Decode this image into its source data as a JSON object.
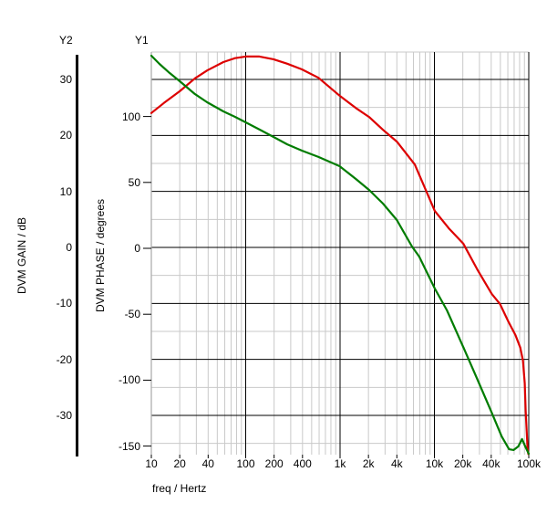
{
  "labels": {
    "y2_axis_name": "Y2",
    "y1_axis_name": "Y1",
    "gain_axis_title": "DVM GAIN / dB",
    "phase_axis_title": "DVM PHASE / degrees",
    "x_axis_title": "freq / Hertz"
  },
  "colors": {
    "gain_curve": "#dd0000",
    "phase_curve": "#007c00",
    "grid_major": "#000000",
    "grid_minor": "#c9c9c9",
    "y1_axis_line": "#a8a8a8",
    "y2_axis_line": "#000000",
    "text": "#000000",
    "background": "#ffffff"
  },
  "chart_data": {
    "type": "line",
    "title": "",
    "xlabel": "freq / Hertz",
    "x_scale": "log",
    "x_range": [
      10,
      100000
    ],
    "grid": true,
    "legend": "none",
    "x_tick_labels": [
      {
        "f": 10,
        "label": "10"
      },
      {
        "f": 20,
        "label": "20"
      },
      {
        "f": 40,
        "label": "40"
      },
      {
        "f": 100,
        "label": "100"
      },
      {
        "f": 200,
        "label": "200"
      },
      {
        "f": 400,
        "label": "400"
      },
      {
        "f": 1000,
        "label": "1k"
      },
      {
        "f": 2000,
        "label": "2k"
      },
      {
        "f": 4000,
        "label": "4k"
      },
      {
        "f": 10000,
        "label": "10k"
      },
      {
        "f": 20000,
        "label": "20k"
      },
      {
        "f": 40000,
        "label": "40k"
      },
      {
        "f": 100000,
        "label": "100k"
      }
    ],
    "y2_axis": {
      "name": "Y2",
      "label": "DVM GAIN / dB",
      "ticks": [
        30,
        20,
        10,
        0,
        -10,
        -20,
        -30
      ],
      "minor_step": 5,
      "range": [
        -37.5,
        35
      ]
    },
    "y1_axis": {
      "name": "Y1",
      "label": "DVM PHASE / degrees",
      "ticks": [
        100,
        50,
        0,
        -50,
        -100,
        -150
      ],
      "range": [
        -156.5,
        149
      ]
    },
    "series": [
      {
        "name": "DVM GAIN / dB",
        "axis": "Y2",
        "color": "#dd0000",
        "x": [
          10,
          13.6,
          20,
          29,
          39,
          58,
          77,
          100,
          140,
          197,
          276,
          395,
          590,
          990,
          1470,
          2030,
          2850,
          4000,
          6200,
          10100,
          14200,
          20200,
          28400,
          40500,
          49500,
          60600,
          72500,
          81300,
          86800,
          90700,
          92700,
          94800,
          96900,
          99000
        ],
        "y": [
          24.0,
          25.8,
          27.9,
          30.2,
          31.6,
          33.1,
          33.8,
          34.1,
          34.1,
          33.6,
          32.8,
          31.8,
          30.3,
          27.1,
          24.9,
          23.3,
          21.0,
          18.9,
          14.8,
          6.5,
          3.4,
          0.7,
          -3.9,
          -8.3,
          -10.1,
          -13.2,
          -15.7,
          -17.9,
          -20.2,
          -24.3,
          -29.2,
          -32.4,
          -35.7,
          -36.9
        ]
      },
      {
        "name": "DVM PHASE / degrees",
        "axis": "Y1",
        "color": "#007c00",
        "x": [
          10,
          12.2,
          15.6,
          20,
          29,
          39,
          58,
          77,
          100,
          141,
          197,
          276,
          395,
          590,
          990,
          1470,
          2030,
          2850,
          4000,
          5790,
          6890,
          10100,
          13600,
          20200,
          28400,
          40500,
          51700,
          61900,
          69100,
          77400,
          84800,
          92700,
          100000
        ],
        "y": [
          146.1,
          139.9,
          133.0,
          126.7,
          117.0,
          110.8,
          103.9,
          99.7,
          95.6,
          90.0,
          84.5,
          78.9,
          74.1,
          69.3,
          62.3,
          52.6,
          44.3,
          33.9,
          21.5,
          1.4,
          -6.2,
          -30.5,
          -47.1,
          -74.8,
          -99.0,
          -124.7,
          -142.7,
          -152.4,
          -153.0,
          -150.3,
          -144.7,
          -151.0,
          -155.8
        ]
      }
    ]
  }
}
